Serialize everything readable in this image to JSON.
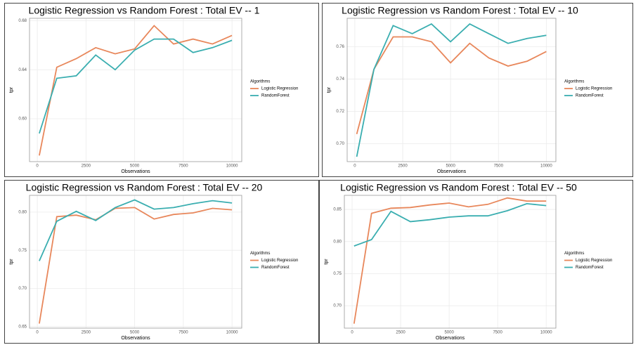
{
  "chart_data": [
    {
      "type": "line",
      "title": "Logistic Regression vs Random Forest : Total EV -- 1",
      "x_label": "Observations",
      "y_label": "tpr",
      "legend_title": "Algorithms",
      "grid": true,
      "x": [
        100,
        1000,
        2000,
        3000,
        4000,
        5000,
        6000,
        7000,
        8000,
        9000,
        10000
      ],
      "series": [
        {
          "name": "Logistic Regression",
          "color": "#e8875b",
          "values": [
            0.57,
            0.642,
            0.649,
            0.658,
            0.653,
            0.657,
            0.676,
            0.661,
            0.665,
            0.661,
            0.668
          ]
        },
        {
          "name": "RandomForest",
          "color": "#3aaeb0",
          "values": [
            0.588,
            0.633,
            0.635,
            0.652,
            0.64,
            0.656,
            0.665,
            0.665,
            0.654,
            0.658,
            0.664
          ]
        }
      ],
      "xlim": [
        -400,
        10500
      ],
      "xticks": [
        0,
        2500,
        5000,
        7500,
        10000
      ],
      "ylim": [
        0.565,
        0.682
      ],
      "yticks": [
        {
          "value": 0.6,
          "label": "0.60"
        },
        0.64,
        0.68
      ]
    },
    {
      "type": "line",
      "title": "Logistic Regression vs Random Forest : Total EV -- 10",
      "x_label": "Observations",
      "y_label": "tpr",
      "legend_title": "Algorithms",
      "grid": true,
      "x": [
        100,
        1000,
        2000,
        3000,
        4000,
        5000,
        6000,
        7000,
        8000,
        9000,
        10000
      ],
      "series": [
        {
          "name": "Logistic Regression",
          "color": "#e8875b",
          "values": [
            0.706,
            0.746,
            0.766,
            0.766,
            0.763,
            0.75,
            0.762,
            0.753,
            0.748,
            0.751,
            0.757
          ]
        },
        {
          "name": "RandomForest",
          "color": "#3aaeb0",
          "values": [
            0.692,
            0.746,
            0.773,
            0.768,
            0.774,
            0.763,
            0.774,
            0.768,
            0.762,
            0.765,
            0.767
          ]
        }
      ],
      "xlim": [
        -400,
        10500
      ],
      "xticks": [
        0,
        2500,
        5000,
        7500,
        10000
      ],
      "ylim": [
        0.689,
        0.7775
      ],
      "yticks": [
        {
          "value": 0.7,
          "label": "0.70"
        },
        0.72,
        0.74,
        0.76
      ]
    },
    {
      "type": "line",
      "title": "Logistic Regression vs Random Forest : Total EV -- 20",
      "x_label": "Observations",
      "y_label": "tpr",
      "legend_title": "Algorithms",
      "grid": true,
      "x": [
        100,
        1000,
        2000,
        3000,
        4000,
        5000,
        6000,
        7000,
        8000,
        9000,
        10000
      ],
      "series": [
        {
          "name": "Logistic Regression",
          "color": "#e8875b",
          "values": [
            0.654,
            0.794,
            0.796,
            0.79,
            0.805,
            0.806,
            0.791,
            0.797,
            0.799,
            0.805,
            0.803
          ]
        },
        {
          "name": "RandomForest",
          "color": "#3aaeb0",
          "values": [
            0.736,
            0.788,
            0.801,
            0.789,
            0.806,
            0.816,
            0.804,
            0.806,
            0.811,
            0.815,
            0.812
          ]
        }
      ],
      "xlim": [
        -400,
        10500
      ],
      "xticks": [
        0,
        2500,
        5000,
        7500,
        10000
      ],
      "ylim": [
        0.648,
        0.822
      ],
      "yticks": [
        0.65,
        {
          "value": 0.7,
          "label": "0.70"
        },
        0.75,
        {
          "value": 0.8,
          "label": "0.80"
        }
      ]
    },
    {
      "type": "line",
      "title": "Logistic Regression vs Random Forest : Total EV -- 50",
      "x_label": "Observations",
      "y_label": "tpr",
      "legend_title": "Algorithms",
      "grid": true,
      "x": [
        100,
        1000,
        2000,
        3000,
        4000,
        5000,
        6000,
        7000,
        8000,
        9000,
        10000
      ],
      "series": [
        {
          "name": "Logistic Regression",
          "color": "#e8875b",
          "values": [
            0.672,
            0.844,
            0.852,
            0.853,
            0.857,
            0.86,
            0.854,
            0.858,
            0.868,
            0.863,
            0.863
          ]
        },
        {
          "name": "RandomForest",
          "color": "#3aaeb0",
          "values": [
            0.793,
            0.803,
            0.847,
            0.831,
            0.834,
            0.838,
            0.84,
            0.84,
            0.848,
            0.859,
            0.856
          ]
        }
      ],
      "xlim": [
        -400,
        10500
      ],
      "xticks": [
        0,
        2500,
        5000,
        7500,
        10000
      ],
      "ylim": [
        0.665,
        0.872
      ],
      "yticks": [
        {
          "value": 0.7,
          "label": "0.70"
        },
        0.75,
        {
          "value": 0.8,
          "label": "0.80"
        },
        0.85
      ]
    }
  ]
}
